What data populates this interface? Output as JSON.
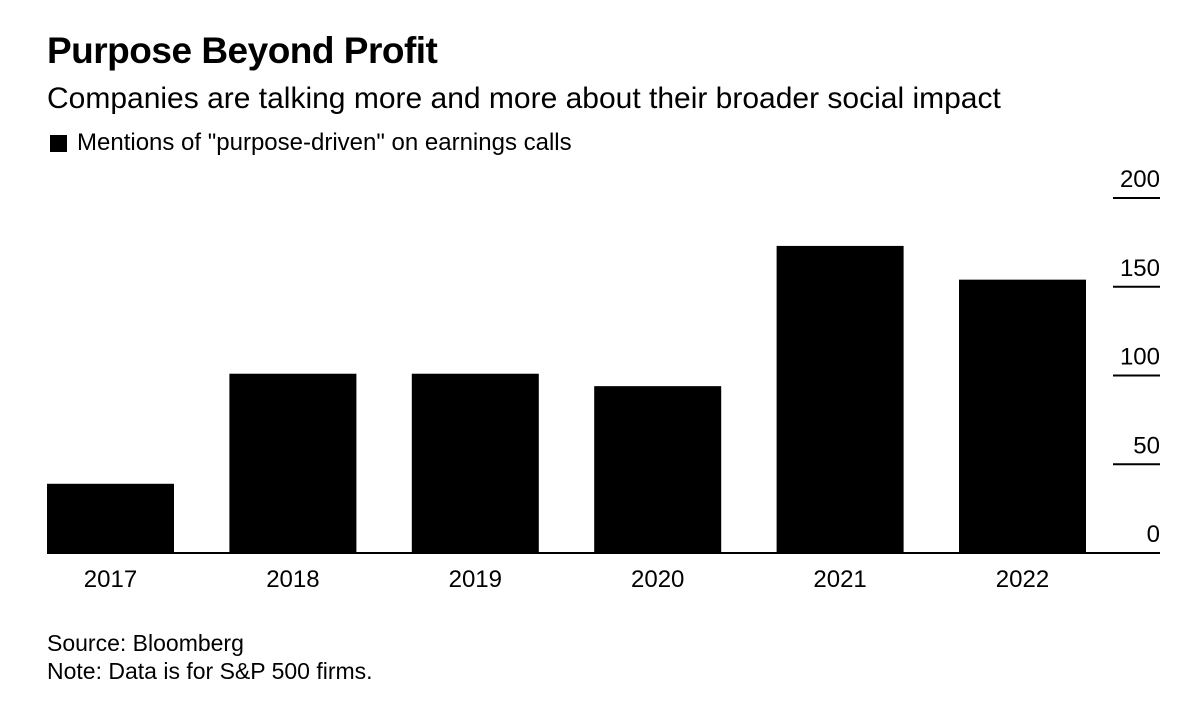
{
  "chart_data": {
    "type": "bar",
    "title": "Purpose Beyond Profit",
    "subtitle": "Companies are talking more and more about their broader social impact",
    "legend": [
      {
        "label": "Mentions of \"purpose-driven\" on earnings calls",
        "color": "#000000"
      }
    ],
    "legend_placement": "top-left",
    "categories": [
      "2017",
      "2018",
      "2019",
      "2020",
      "2021",
      "2022"
    ],
    "series": [
      {
        "name": "Mentions of \"purpose-driven\" on earnings calls",
        "values": [
          39,
          101,
          101,
          94,
          173,
          154
        ],
        "color": "#000000"
      }
    ],
    "xlabel": "",
    "ylabel": "",
    "ylim": [
      0,
      200
    ],
    "yticks": [
      200,
      150,
      100,
      50,
      0
    ],
    "y_axis_side": "right",
    "grid": false
  },
  "footer": {
    "source": "Source: Bloomberg",
    "note": "Note: Data is for S&P 500 firms."
  }
}
